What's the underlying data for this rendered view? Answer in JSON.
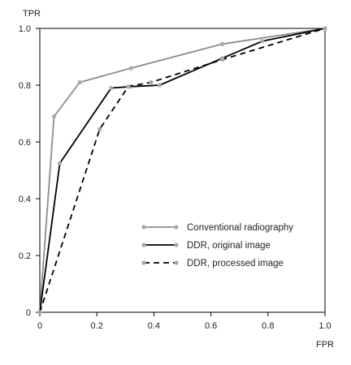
{
  "chart_data": {
    "type": "line",
    "xlabel": "FPR",
    "ylabel": "TPR",
    "xlim": [
      0,
      1
    ],
    "ylim": [
      0,
      1
    ],
    "x_ticks": [
      "0",
      "0.2",
      "0.4",
      "0.6",
      "0.8",
      "1.0"
    ],
    "y_ticks": [
      "0",
      "0.2",
      "0.4",
      "0.6",
      "0.8",
      "1.0"
    ],
    "grid": false,
    "legend_position": "bottom-right",
    "series": [
      {
        "name": "Conventional radiography",
        "color": "#8c8c8c",
        "style": "solid",
        "points": [
          [
            0,
            0
          ],
          [
            0.05,
            0.69
          ],
          [
            0.14,
            0.81
          ],
          [
            0.32,
            0.86
          ],
          [
            0.64,
            0.945
          ],
          [
            1.0,
            1.0
          ]
        ]
      },
      {
        "name": "DDR, original image",
        "color": "#000000",
        "style": "solid",
        "points": [
          [
            0,
            0
          ],
          [
            0.07,
            0.525
          ],
          [
            0.25,
            0.79
          ],
          [
            0.32,
            0.795
          ],
          [
            0.42,
            0.8
          ],
          [
            0.64,
            0.895
          ],
          [
            0.78,
            0.955
          ],
          [
            1.0,
            1.0
          ]
        ]
      },
      {
        "name": "DDR, processed image",
        "color": "#000000",
        "style": "dashed",
        "points": [
          [
            0,
            0
          ],
          [
            0.21,
            0.645
          ],
          [
            0.31,
            0.795
          ],
          [
            0.39,
            0.81
          ],
          [
            0.64,
            0.89
          ],
          [
            1.0,
            1.0
          ]
        ]
      }
    ]
  }
}
